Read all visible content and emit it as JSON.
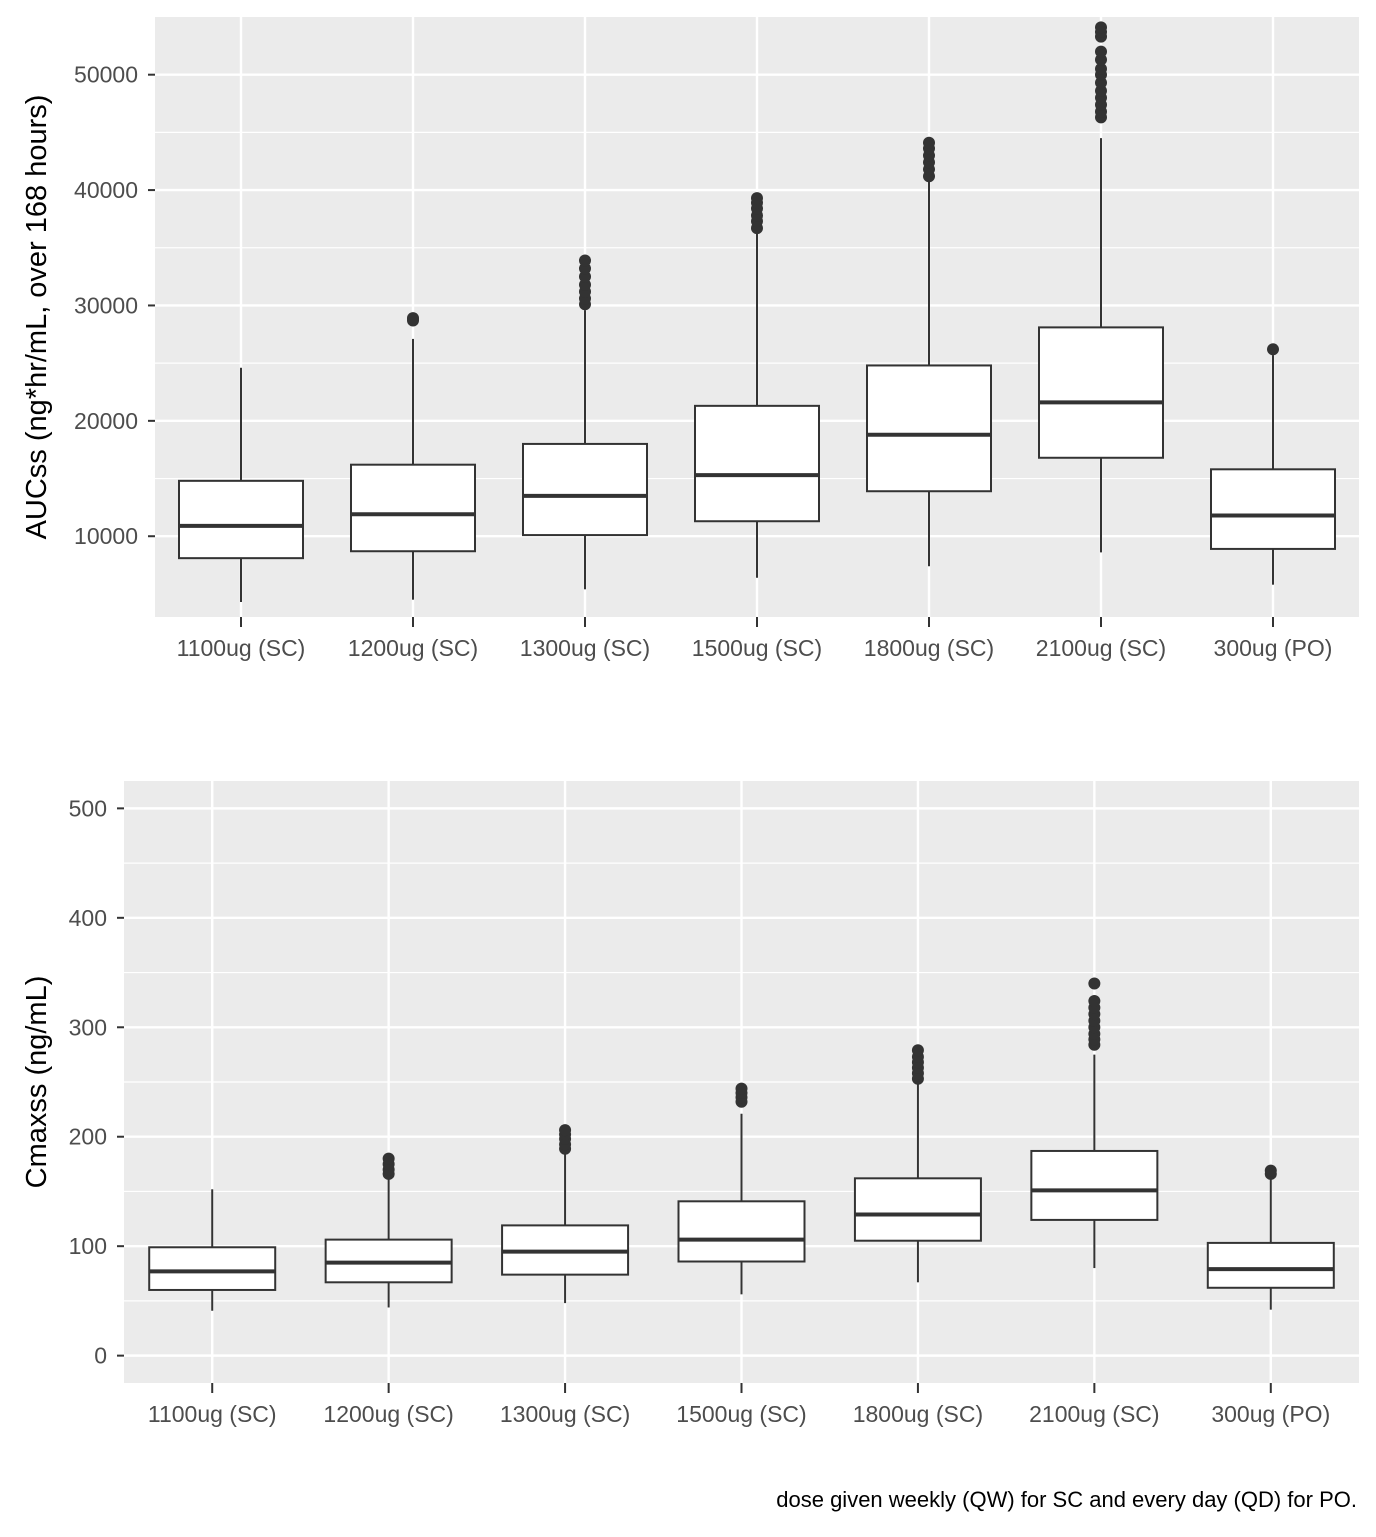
{
  "caption": "dose given weekly (QW) for SC and every day (QD) for PO.",
  "colors": {
    "panel_background": "#ebebeb",
    "grid": "#ffffff",
    "box_fill": "#ffffff",
    "box_stroke": "#333333",
    "outlier": "#333333",
    "tick_text": "#4d4d4d"
  },
  "chart_data": [
    {
      "type": "boxplot",
      "title": "",
      "xlabel": "",
      "ylabel": "AUCss (ng*hr/mL, over 168 hours)",
      "ylim": [
        3000,
        55000
      ],
      "yticks": [
        10000,
        20000,
        30000,
        40000,
        50000
      ],
      "grid": true,
      "categories": [
        "1100ug (SC)",
        "1200ug (SC)",
        "1300ug (SC)",
        "1500ug (SC)",
        "1800ug (SC)",
        "2100ug (SC)",
        "300ug (PO)"
      ],
      "boxes": [
        {
          "whisker_low": 4300,
          "q1": 8100,
          "median": 10900,
          "q3": 14800,
          "whisker_high": 24600,
          "outliers": []
        },
        {
          "whisker_low": 4500,
          "q1": 8700,
          "median": 11900,
          "q3": 16200,
          "whisker_high": 27100,
          "outliers": [
            28700,
            28900
          ]
        },
        {
          "whisker_low": 5400,
          "q1": 10100,
          "median": 13500,
          "q3": 18000,
          "whisker_high": 29600,
          "outliers": [
            30100,
            30600,
            31200,
            31800,
            32500,
            33200,
            33900
          ]
        },
        {
          "whisker_low": 6400,
          "q1": 11300,
          "median": 15300,
          "q3": 21300,
          "whisker_high": 36400,
          "outliers": [
            36700,
            37300,
            37800,
            38400,
            38900,
            39300
          ]
        },
        {
          "whisker_low": 7400,
          "q1": 13900,
          "median": 18800,
          "q3": 24800,
          "whisker_high": 41000,
          "outliers": [
            41200,
            41800,
            42400,
            43000,
            43600,
            44100
          ]
        },
        {
          "whisker_low": 8600,
          "q1": 16800,
          "median": 21600,
          "q3": 28100,
          "whisker_high": 44500,
          "outliers": [
            46300,
            46800,
            47400,
            48000,
            48600,
            49300,
            50000,
            50500,
            51300,
            52000,
            53300,
            53700,
            54100
          ]
        },
        {
          "whisker_low": 5800,
          "q1": 8900,
          "median": 11800,
          "q3": 15800,
          "whisker_high": 25700,
          "outliers": [
            26200
          ]
        }
      ]
    },
    {
      "type": "boxplot",
      "title": "",
      "xlabel": "",
      "ylabel": "Cmaxss (ng/mL)",
      "ylim": [
        -25,
        525
      ],
      "yticks": [
        0,
        100,
        200,
        300,
        400,
        500
      ],
      "grid": true,
      "categories": [
        "1100ug (SC)",
        "1200ug (SC)",
        "1300ug (SC)",
        "1500ug (SC)",
        "1800ug (SC)",
        "2100ug (SC)",
        "300ug (PO)"
      ],
      "boxes": [
        {
          "whisker_low": 41,
          "q1": 60,
          "median": 77,
          "q3": 99,
          "whisker_high": 152,
          "outliers": []
        },
        {
          "whisker_low": 44,
          "q1": 67,
          "median": 85,
          "q3": 106,
          "whisker_high": 163,
          "outliers": [
            166,
            170,
            175,
            180
          ]
        },
        {
          "whisker_low": 48,
          "q1": 74,
          "median": 95,
          "q3": 119,
          "whisker_high": 186,
          "outliers": [
            189,
            193,
            198,
            202,
            206
          ]
        },
        {
          "whisker_low": 56,
          "q1": 86,
          "median": 106,
          "q3": 141,
          "whisker_high": 221,
          "outliers": [
            232,
            236,
            240,
            244
          ]
        },
        {
          "whisker_low": 67,
          "q1": 105,
          "median": 129,
          "q3": 162,
          "whisker_high": 248,
          "outliers": [
            253,
            258,
            263,
            268,
            273,
            279
          ]
        },
        {
          "whisker_low": 80,
          "q1": 124,
          "median": 151,
          "q3": 187,
          "whisker_high": 275,
          "outliers": [
            284,
            289,
            294,
            300,
            306,
            312,
            318,
            324,
            340
          ]
        },
        {
          "whisker_low": 42,
          "q1": 62,
          "median": 79,
          "q3": 103,
          "whisker_high": 163,
          "outliers": [
            166,
            169
          ]
        }
      ]
    }
  ]
}
